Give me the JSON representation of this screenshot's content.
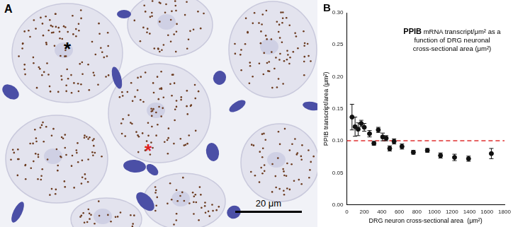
{
  "image_panel": {
    "label": "A",
    "markers": [
      {
        "text": "*",
        "color": "#000000"
      },
      {
        "text": "*",
        "color": "#e02020"
      }
    ],
    "scale_bar": "20 μm"
  },
  "chart_data": {
    "type": "scatter",
    "panel_label": "B",
    "title": [
      "PPIB mRNA transcript/μm² as a",
      "function of DRG neuronal",
      "cross-sectional area (μm²)"
    ],
    "x_label": "DRG neuron cross-sectional area  (μm²)",
    "y_label": "PPIB transcript/area (μm²)",
    "xlim": [
      0,
      1800
    ],
    "xticks": [
      0,
      200,
      400,
      600,
      800,
      1000,
      1200,
      1400,
      1600,
      1800
    ],
    "ylim": [
      0,
      0.3
    ],
    "yticks": [
      {
        "value": 0,
        "label": "0.00"
      },
      {
        "value": 0.05,
        "label": "0.05"
      },
      {
        "value": 0.1,
        "label": "0.10"
      },
      {
        "value": 0.15,
        "label": "0.15"
      },
      {
        "value": 0.2,
        "label": "0.20"
      },
      {
        "value": 0.25,
        "label": "0.25"
      },
      {
        "value": 0.3,
        "label": "0.30"
      }
    ],
    "grid": false,
    "series": [
      {
        "type": "scatter",
        "color": "#111111",
        "marker": "circle",
        "x": [
          60,
          95,
          130,
          165,
          200,
          260,
          310,
          360,
          410,
          450,
          490,
          540,
          630,
          760,
          920,
          1070,
          1230,
          1390,
          1650
        ],
        "values": [
          0.137,
          0.122,
          0.118,
          0.127,
          0.121,
          0.111,
          0.096,
          0.117,
          0.106,
          0.104,
          0.088,
          0.099,
          0.091,
          0.082,
          0.085,
          0.077,
          0.074,
          0.072,
          0.08
        ],
        "errors": [
          0.02,
          0.015,
          0.01,
          0.005,
          0.006,
          0.005,
          0.003,
          0.004,
          0.006,
          0.004,
          0.004,
          0.004,
          0.004,
          0.003,
          0.003,
          0.004,
          0.005,
          0.004,
          0.008
        ]
      },
      {
        "type": "line",
        "color": "#e03030",
        "line_style": "dashed",
        "x": [
          0,
          1800
        ],
        "values": [
          0.1,
          0.1
        ]
      }
    ]
  }
}
